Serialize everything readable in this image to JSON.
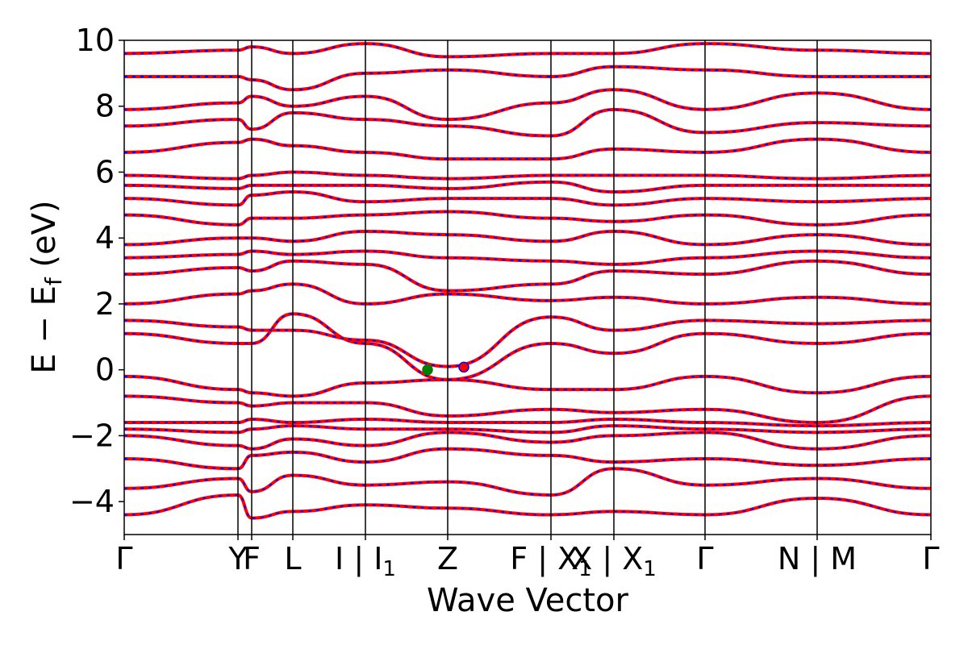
{
  "chart_data": {
    "type": "line",
    "title": "",
    "xlabel": "Wave Vector",
    "ylabel": "E − E",
    "ylabel_sub": "f",
    "ylabel_unit": " (eV)",
    "ylim": [
      -5,
      10
    ],
    "yticks": [
      -4,
      -2,
      0,
      2,
      4,
      6,
      8,
      10
    ],
    "ytick_labels": [
      "−4",
      "−2",
      "0",
      "2",
      "4",
      "6",
      "8",
      "10"
    ],
    "grid": false,
    "legend": "none",
    "high_symmetry_points": [
      {
        "pos": 0.0,
        "main": "Γ",
        "sub": ""
      },
      {
        "pos": 0.141,
        "main": "Y",
        "sub": ""
      },
      {
        "pos": 0.158,
        "main": "F",
        "sub": ""
      },
      {
        "pos": 0.209,
        "main": "L",
        "sub": ""
      },
      {
        "pos": 0.299,
        "main": "I | I",
        "sub": "1"
      },
      {
        "pos": 0.401,
        "main": "Z",
        "sub": ""
      },
      {
        "pos": 0.529,
        "main": "F | X",
        "sub": "1"
      },
      {
        "pos": 0.607,
        "main": "X | X",
        "sub": "1"
      },
      {
        "pos": 0.72,
        "main": "Γ",
        "sub": ""
      },
      {
        "pos": 0.859,
        "main": "N | M",
        "sub": ""
      },
      {
        "pos": 1.0,
        "main": "Γ",
        "sub": ""
      }
    ],
    "colors": {
      "dft": "#ff0000",
      "model": "#0000ff",
      "marker_green": "#008000",
      "marker_red": "#ff0000"
    },
    "markers": [
      {
        "x": 0.376,
        "y": 0.0,
        "color": "green"
      },
      {
        "x": 0.421,
        "y": 0.08,
        "color": "red"
      }
    ],
    "series": [
      {
        "x": [
          0,
          0.141,
          0.158,
          0.209,
          0.299,
          0.401,
          0.529,
          0.607,
          0.72,
          0.859,
          1
        ],
        "y": [
          -4.4,
          -3.8,
          -4.5,
          -4.3,
          -4.1,
          -4.2,
          -4.4,
          -4.3,
          -4.4,
          -3.9,
          -4.4
        ]
      },
      {
        "x": [
          0,
          0.141,
          0.158,
          0.209,
          0.299,
          0.401,
          0.529,
          0.607,
          0.72,
          0.859,
          1
        ],
        "y": [
          -3.6,
          -3.3,
          -3.7,
          -3.2,
          -3.5,
          -3.4,
          -3.8,
          -3.0,
          -3.5,
          -3.3,
          -3.6
        ]
      },
      {
        "x": [
          0,
          0.141,
          0.158,
          0.209,
          0.299,
          0.401,
          0.529,
          0.607,
          0.72,
          0.859,
          1
        ],
        "y": [
          -2.7,
          -3.0,
          -2.6,
          -2.5,
          -2.8,
          -2.4,
          -2.6,
          -2.8,
          -2.7,
          -2.9,
          -2.7
        ]
      },
      {
        "x": [
          0,
          0.141,
          0.158,
          0.209,
          0.299,
          0.401,
          0.529,
          0.607,
          0.72,
          0.859,
          1
        ],
        "y": [
          -2.0,
          -2.3,
          -2.4,
          -2.1,
          -2.3,
          -1.9,
          -2.2,
          -2.0,
          -1.9,
          -2.4,
          -2.0
        ]
      },
      {
        "x": [
          0,
          0.141,
          0.158,
          0.209,
          0.299,
          0.401,
          0.529,
          0.607,
          0.72,
          0.859,
          1
        ],
        "y": [
          -1.8,
          -1.9,
          -1.8,
          -1.7,
          -1.8,
          -1.8,
          -1.9,
          -1.7,
          -1.8,
          -1.9,
          -1.8
        ]
      },
      {
        "x": [
          0,
          0.141,
          0.158,
          0.209,
          0.299,
          0.401,
          0.529,
          0.607,
          0.72,
          0.859,
          1
        ],
        "y": [
          -1.6,
          -1.6,
          -1.5,
          -1.6,
          -1.5,
          -1.6,
          -1.6,
          -1.5,
          -1.6,
          -1.7,
          -1.6
        ]
      },
      {
        "x": [
          0,
          0.141,
          0.158,
          0.209,
          0.299,
          0.401,
          0.529,
          0.607,
          0.72,
          0.859,
          1
        ],
        "y": [
          -0.8,
          -1.0,
          -1.1,
          -1.0,
          -1.0,
          -1.4,
          -1.2,
          -1.3,
          -1.2,
          -1.6,
          -0.8
        ]
      },
      {
        "x": [
          0,
          0.141,
          0.158,
          0.209,
          0.299,
          0.401,
          0.529,
          0.607,
          0.72,
          0.859,
          1
        ],
        "y": [
          -0.2,
          -0.6,
          -0.7,
          -0.8,
          -0.4,
          -0.3,
          -0.6,
          -0.6,
          -0.2,
          -0.7,
          -0.2
        ]
      },
      {
        "x": [
          0,
          0.141,
          0.158,
          0.209,
          0.299,
          0.401,
          0.529,
          0.607,
          0.72,
          0.859,
          1
        ],
        "y": [
          1.1,
          0.8,
          0.8,
          1.7,
          0.8,
          -0.3,
          0.8,
          0.5,
          1.1,
          0.8,
          1.1
        ]
      },
      {
        "x": [
          0,
          0.141,
          0.158,
          0.209,
          0.299,
          0.401,
          0.529,
          0.607,
          0.72,
          0.859,
          1
        ],
        "y": [
          1.5,
          1.3,
          1.2,
          1.2,
          0.9,
          0.1,
          1.6,
          1.2,
          1.5,
          1.4,
          1.5
        ]
      },
      {
        "x": [
          0,
          0.141,
          0.158,
          0.209,
          0.299,
          0.401,
          0.529,
          0.607,
          0.72,
          0.859,
          1
        ],
        "y": [
          2.0,
          2.3,
          2.4,
          2.6,
          2.0,
          2.3,
          2.1,
          2.2,
          2.0,
          2.2,
          2.0
        ]
      },
      {
        "x": [
          0,
          0.141,
          0.158,
          0.209,
          0.299,
          0.401,
          0.529,
          0.607,
          0.72,
          0.859,
          1
        ],
        "y": [
          2.9,
          3.1,
          3.0,
          3.3,
          3.2,
          2.4,
          2.6,
          3.0,
          2.9,
          3.3,
          2.9
        ]
      },
      {
        "x": [
          0,
          0.141,
          0.158,
          0.209,
          0.299,
          0.401,
          0.529,
          0.607,
          0.72,
          0.859,
          1
        ],
        "y": [
          3.4,
          3.5,
          3.6,
          3.5,
          3.6,
          3.4,
          3.3,
          3.2,
          3.4,
          3.6,
          3.4
        ]
      },
      {
        "x": [
          0,
          0.141,
          0.158,
          0.209,
          0.299,
          0.401,
          0.529,
          0.607,
          0.72,
          0.859,
          1
        ],
        "y": [
          3.8,
          4.0,
          4.0,
          3.9,
          4.2,
          4.1,
          3.9,
          4.2,
          3.8,
          4.1,
          3.8
        ]
      },
      {
        "x": [
          0,
          0.141,
          0.158,
          0.209,
          0.299,
          0.401,
          0.529,
          0.607,
          0.72,
          0.859,
          1
        ],
        "y": [
          4.7,
          4.4,
          4.6,
          4.6,
          4.7,
          4.8,
          4.6,
          4.5,
          4.7,
          4.4,
          4.7
        ]
      },
      {
        "x": [
          0,
          0.141,
          0.158,
          0.209,
          0.299,
          0.401,
          0.529,
          0.607,
          0.72,
          0.859,
          1
        ],
        "y": [
          5.2,
          5.0,
          5.3,
          5.4,
          5.1,
          5.2,
          5.2,
          5.0,
          5.2,
          5.1,
          5.2
        ]
      },
      {
        "x": [
          0,
          0.141,
          0.158,
          0.209,
          0.299,
          0.401,
          0.529,
          0.607,
          0.72,
          0.859,
          1
        ],
        "y": [
          5.6,
          5.5,
          5.6,
          5.6,
          5.6,
          5.5,
          5.7,
          5.4,
          5.6,
          5.6,
          5.6
        ]
      },
      {
        "x": [
          0,
          0.141,
          0.158,
          0.209,
          0.299,
          0.401,
          0.529,
          0.607,
          0.72,
          0.859,
          1
        ],
        "y": [
          5.9,
          5.8,
          5.9,
          6.0,
          5.9,
          5.8,
          5.9,
          5.9,
          5.9,
          5.8,
          5.9
        ]
      },
      {
        "x": [
          0,
          0.141,
          0.158,
          0.209,
          0.299,
          0.401,
          0.529,
          0.607,
          0.72,
          0.859,
          1
        ],
        "y": [
          6.6,
          6.9,
          7.0,
          6.8,
          6.6,
          6.4,
          6.4,
          6.7,
          6.6,
          7.0,
          6.6
        ]
      },
      {
        "x": [
          0,
          0.141,
          0.158,
          0.209,
          0.299,
          0.401,
          0.529,
          0.607,
          0.72,
          0.859,
          1
        ],
        "y": [
          7.4,
          7.6,
          7.3,
          7.8,
          7.6,
          7.4,
          7.1,
          7.9,
          7.2,
          7.5,
          7.4
        ]
      },
      {
        "x": [
          0,
          0.141,
          0.158,
          0.209,
          0.299,
          0.401,
          0.529,
          0.607,
          0.72,
          0.859,
          1
        ],
        "y": [
          7.9,
          8.1,
          8.3,
          8.0,
          8.3,
          7.6,
          8.1,
          8.5,
          7.9,
          8.4,
          7.9
        ]
      },
      {
        "x": [
          0,
          0.141,
          0.158,
          0.209,
          0.299,
          0.401,
          0.529,
          0.607,
          0.72,
          0.859,
          1
        ],
        "y": [
          8.9,
          8.9,
          8.8,
          8.5,
          9.0,
          9.1,
          8.9,
          9.2,
          9.1,
          8.9,
          8.9
        ]
      },
      {
        "x": [
          0,
          0.141,
          0.158,
          0.209,
          0.299,
          0.401,
          0.529,
          0.607,
          0.72,
          0.859,
          1
        ],
        "y": [
          9.6,
          9.7,
          9.8,
          9.6,
          9.9,
          9.5,
          9.6,
          9.6,
          9.9,
          9.7,
          9.6
        ]
      }
    ]
  }
}
